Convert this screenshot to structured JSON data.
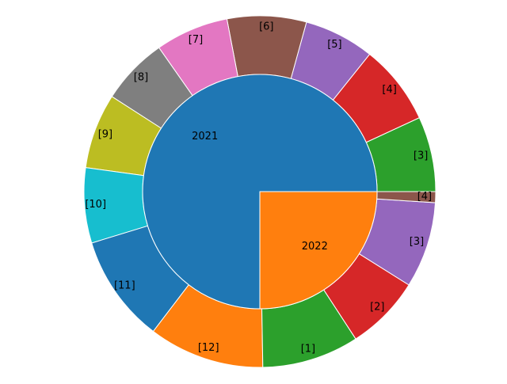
{
  "chart_data": {
    "type": "nested-pie",
    "title": "",
    "inner": {
      "labels": [
        "2021",
        "2022"
      ],
      "values": [
        75,
        25
      ],
      "colors": [
        "#1f77b4",
        "#ff7f0e"
      ]
    },
    "outer": {
      "labels": [
        "[3]",
        "[4]",
        "[5]",
        "[6]",
        "[7]",
        "[8]",
        "[9]",
        "[10]",
        "[11]",
        "[12]",
        "[1]",
        "[2]",
        "[3]",
        "[4]"
      ],
      "values": [
        7.6,
        8.1,
        7.1,
        8.0,
        7.4,
        6.8,
        7.6,
        7.6,
        10.9,
        11.7,
        9.8,
        7.6,
        8.7,
        1.1
      ],
      "colors": [
        "#2ca02c",
        "#d62728",
        "#9467bd",
        "#8c564b",
        "#e377c2",
        "#7f7f7f",
        "#bcbd22",
        "#17becf",
        "#1f77b4",
        "#ff7f0e",
        "#2ca02c",
        "#d62728",
        "#9467bd",
        "#8c564b"
      ]
    },
    "start_angle_deg": 0,
    "direction": "counterclockwise",
    "wedge_edge_color": "#ffffff"
  }
}
